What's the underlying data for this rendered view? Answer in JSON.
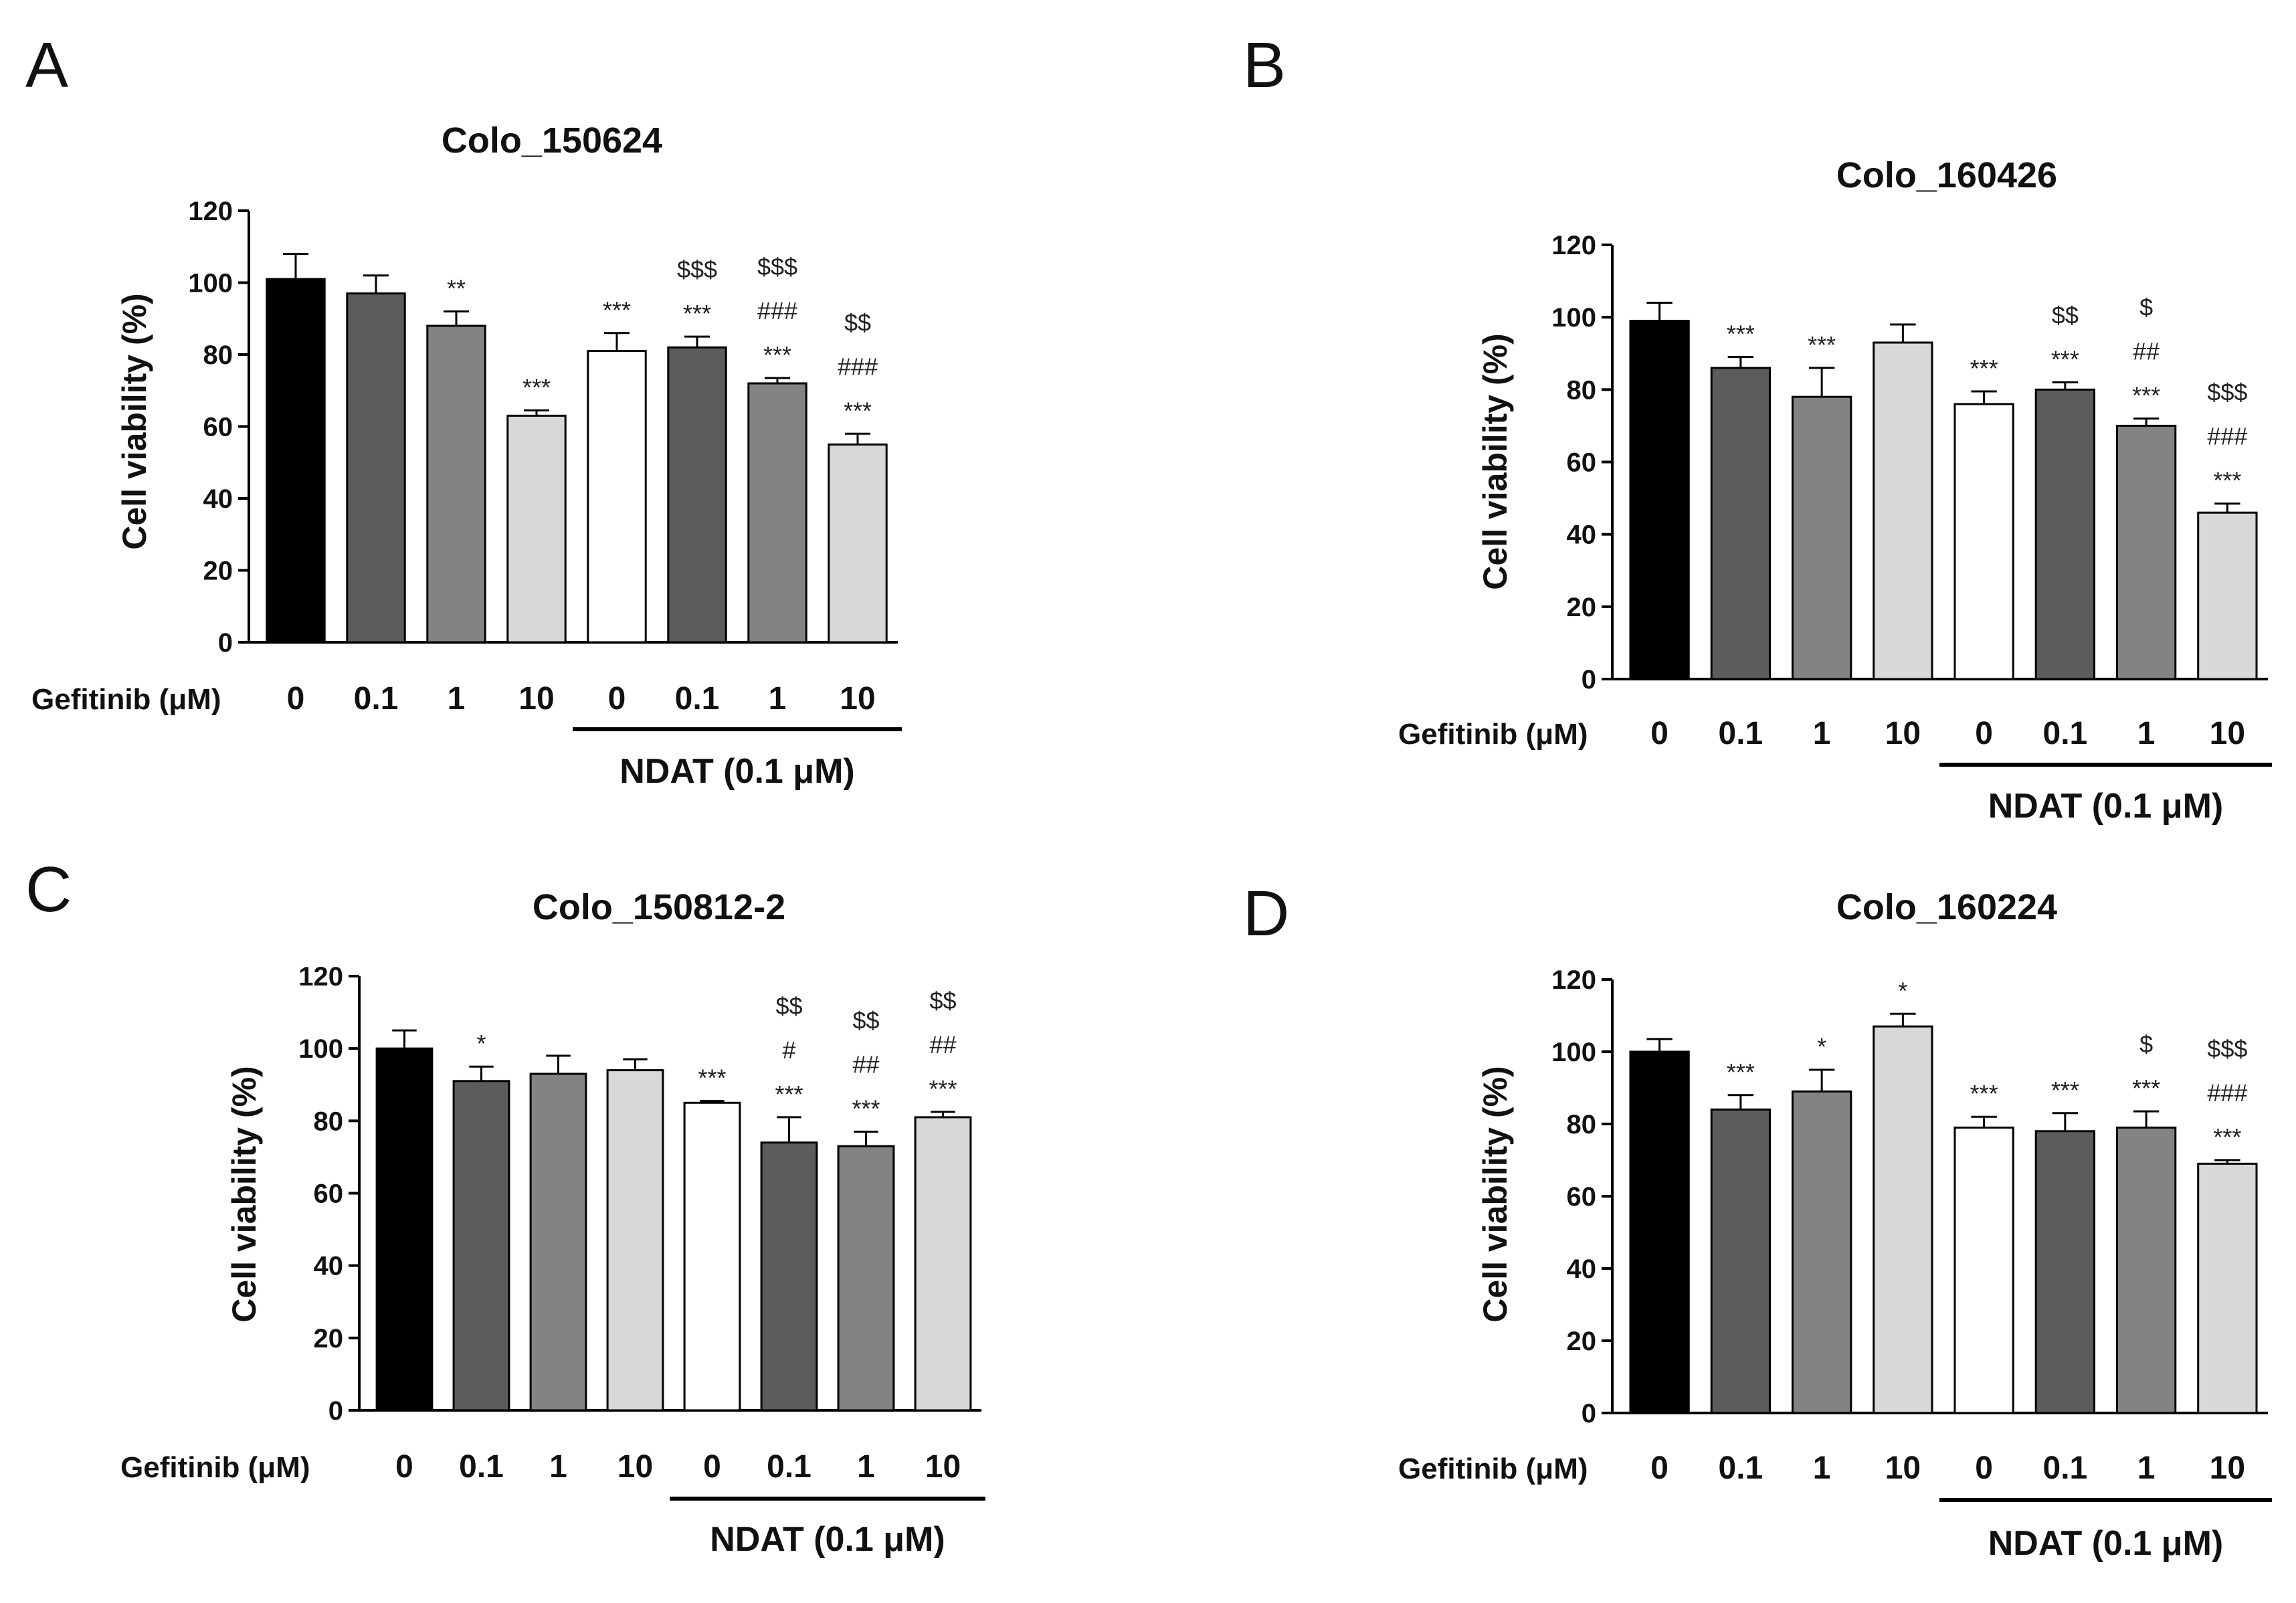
{
  "figure": {
    "panel_letters": [
      "A",
      "B",
      "C",
      "D"
    ]
  },
  "chart_data": [
    {
      "panel": "A",
      "type": "bar",
      "title": "Colo_150624",
      "ylabel": "Cell viability (%)",
      "xlabel": "Gefitinib (μM)",
      "group_label": "NDAT (0.1 μM)",
      "categories": [
        "0",
        "0.1",
        "1",
        "10",
        "0",
        "0.1",
        "1",
        "10"
      ],
      "values": [
        101,
        97,
        88,
        63,
        81,
        82,
        72,
        55
      ],
      "errors": [
        7,
        5,
        4,
        1.5,
        5,
        3,
        1.5,
        3
      ],
      "colors": [
        "#000000",
        "#5c5c5c",
        "#838383",
        "#d8d8d8",
        "#ffffff",
        "#5c5c5c",
        "#838383",
        "#d8d8d8"
      ],
      "annotations": [
        [],
        [],
        [
          "**"
        ],
        [
          "***"
        ],
        [
          "***"
        ],
        [
          "***",
          "$$$"
        ],
        [
          "***",
          "###",
          "$$$"
        ],
        [
          "***",
          "###",
          "$$"
        ]
      ],
      "ylim": [
        0,
        120
      ],
      "yticks": [
        0,
        20,
        40,
        60,
        80,
        100,
        120
      ]
    },
    {
      "panel": "B",
      "type": "bar",
      "title": "Colo_160426",
      "ylabel": "Cell viability (%)",
      "xlabel": "Gefitinib (μM)",
      "group_label": "NDAT (0.1 μM)",
      "categories": [
        "0",
        "0.1",
        "1",
        "10",
        "0",
        "0.1",
        "1",
        "10"
      ],
      "values": [
        99,
        86,
        78,
        93,
        76,
        80,
        70,
        46
      ],
      "errors": [
        5,
        3,
        8,
        5,
        3.5,
        2,
        2,
        2.5
      ],
      "colors": [
        "#000000",
        "#5c5c5c",
        "#838383",
        "#d8d8d8",
        "#ffffff",
        "#5c5c5c",
        "#838383",
        "#d8d8d8"
      ],
      "annotations": [
        [],
        [
          "***"
        ],
        [
          "***"
        ],
        [],
        [
          "***"
        ],
        [
          "***",
          "$$"
        ],
        [
          "***",
          "##",
          "$"
        ],
        [
          "***",
          "###",
          "$$$"
        ]
      ],
      "ylim": [
        0,
        120
      ],
      "yticks": [
        0,
        20,
        40,
        60,
        80,
        100,
        120
      ]
    },
    {
      "panel": "C",
      "type": "bar",
      "title": "Colo_150812-2",
      "ylabel": "Cell viability (%)",
      "xlabel": "Gefitinib (μM)",
      "group_label": "NDAT (0.1 μM)",
      "categories": [
        "0",
        "0.1",
        "1",
        "10",
        "0",
        "0.1",
        "1",
        "10"
      ],
      "values": [
        100,
        91,
        93,
        94,
        85,
        74,
        73,
        81
      ],
      "errors": [
        5,
        4,
        5,
        3,
        0.5,
        7,
        4,
        1.5
      ],
      "colors": [
        "#000000",
        "#5c5c5c",
        "#838383",
        "#d8d8d8",
        "#ffffff",
        "#5c5c5c",
        "#838383",
        "#d8d8d8"
      ],
      "annotations": [
        [],
        [
          "*"
        ],
        [],
        [],
        [
          "***"
        ],
        [
          "***",
          "#",
          "$$"
        ],
        [
          "***",
          "##",
          "$$"
        ],
        [
          "***",
          "##",
          "$$"
        ]
      ],
      "ylim": [
        0,
        120
      ],
      "yticks": [
        0,
        20,
        40,
        60,
        80,
        100,
        120
      ]
    },
    {
      "panel": "D",
      "type": "bar",
      "title": "Colo_160224",
      "ylabel": "Cell viability (%)",
      "xlabel": "Gefitinib (μM)",
      "group_label": "NDAT (0.1 μM)",
      "categories": [
        "0",
        "0.1",
        "1",
        "10",
        "0",
        "0.1",
        "1",
        "10"
      ],
      "values": [
        100,
        84,
        89,
        107,
        79,
        78,
        79,
        69
      ],
      "errors": [
        3.5,
        4,
        6,
        3.5,
        3,
        5,
        4.5,
        1
      ],
      "colors": [
        "#000000",
        "#5c5c5c",
        "#838383",
        "#d8d8d8",
        "#ffffff",
        "#5c5c5c",
        "#838383",
        "#d8d8d8"
      ],
      "annotations": [
        [],
        [
          "***"
        ],
        [
          "*"
        ],
        [
          "*"
        ],
        [
          "***"
        ],
        [
          "***"
        ],
        [
          "***",
          "$"
        ],
        [
          "***",
          "###",
          "$$$"
        ]
      ],
      "ylim": [
        0,
        120
      ],
      "yticks": [
        0,
        20,
        40,
        60,
        80,
        100,
        120
      ]
    }
  ]
}
